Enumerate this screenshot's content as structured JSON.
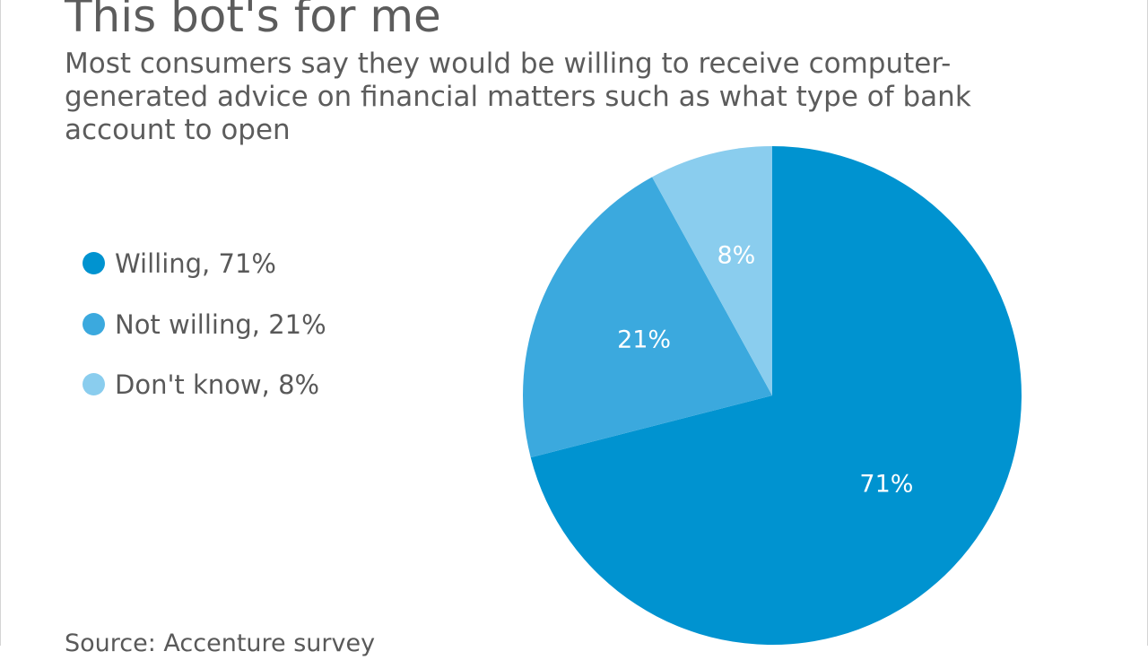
{
  "chart_data": {
    "type": "pie",
    "title": "This bot's for me",
    "subtitle": "Most consumers say they would be willing to receive computer-generated advice on financial matters such as what type of bank account to open",
    "slices": [
      {
        "name": "Willing",
        "value": 71,
        "label": "71%",
        "legend": "Willing, 71%",
        "color": "#0093d0"
      },
      {
        "name": "Not willing",
        "value": 21,
        "label": "21%",
        "legend": "Not willing, 21%",
        "color": "#3ba9de"
      },
      {
        "name": "Don't know",
        "value": 8,
        "label": "8%",
        "legend": "Don't know, 8%",
        "color": "#8acdee"
      }
    ],
    "start": "12 o'clock",
    "direction": "clockwise",
    "legend_position": "left",
    "source": "Source: Accenture survey"
  }
}
